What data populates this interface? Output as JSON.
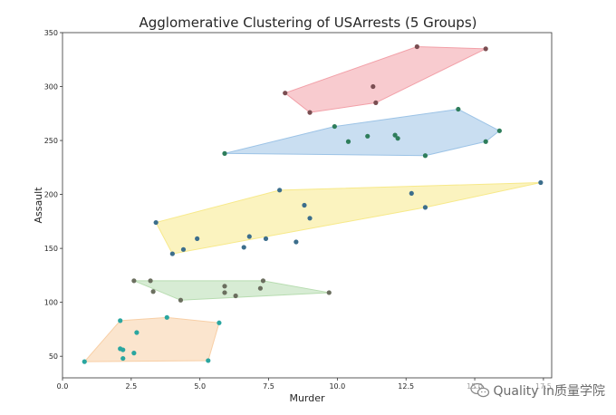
{
  "chart_data": {
    "type": "scatter",
    "title": "Agglomerative Clustering of USArrests (5 Groups)",
    "xlabel": "Murder",
    "ylabel": "Assault",
    "xlim": [
      0,
      17.8
    ],
    "ylim": [
      30,
      350
    ],
    "xticks": [
      "0.0",
      "2.5",
      "5.0",
      "7.5",
      "10.0",
      "12.5",
      "15.0",
      "17.5"
    ],
    "yticks": [
      "50",
      "100",
      "150",
      "200",
      "250",
      "300",
      "350"
    ],
    "grid": false,
    "clusters": [
      {
        "hull_color": "#f2a0a8",
        "point_color": "#7a4e52",
        "hull": [
          [
            8.1,
            294
          ],
          [
            9.0,
            276
          ],
          [
            11.4,
            285
          ],
          [
            15.4,
            335
          ],
          [
            12.9,
            337
          ]
        ],
        "points": [
          [
            8.1,
            294
          ],
          [
            9.0,
            276
          ],
          [
            11.4,
            285
          ],
          [
            11.3,
            300
          ],
          [
            12.9,
            337
          ],
          [
            15.4,
            335
          ]
        ]
      },
      {
        "hull_color": "#9cc3e6",
        "point_color": "#2e7d5b",
        "hull": [
          [
            5.9,
            238
          ],
          [
            13.2,
            236
          ],
          [
            15.4,
            249
          ],
          [
            15.9,
            259
          ],
          [
            14.4,
            279
          ],
          [
            9.9,
            263
          ]
        ],
        "points": [
          [
            5.9,
            238
          ],
          [
            9.9,
            263
          ],
          [
            10.4,
            249
          ],
          [
            11.1,
            254
          ],
          [
            12.1,
            255
          ],
          [
            12.2,
            252
          ],
          [
            13.2,
            236
          ],
          [
            14.4,
            279
          ],
          [
            15.4,
            249
          ],
          [
            15.9,
            259
          ]
        ]
      },
      {
        "hull_color": "#f7e98a",
        "point_color": "#3c6e8c",
        "hull": [
          [
            3.4,
            174
          ],
          [
            4.0,
            145
          ],
          [
            13.2,
            188
          ],
          [
            17.4,
            211
          ],
          [
            7.9,
            204
          ]
        ],
        "points": [
          [
            3.4,
            174
          ],
          [
            4.0,
            145
          ],
          [
            4.4,
            149
          ],
          [
            4.9,
            159
          ],
          [
            6.6,
            151
          ],
          [
            6.8,
            161
          ],
          [
            7.4,
            159
          ],
          [
            7.9,
            204
          ],
          [
            8.5,
            156
          ],
          [
            8.8,
            190
          ],
          [
            9.0,
            178
          ],
          [
            12.7,
            201
          ],
          [
            13.2,
            188
          ],
          [
            17.4,
            211
          ]
        ]
      },
      {
        "hull_color": "#b7dcb0",
        "point_color": "#6b6f5f",
        "hull": [
          [
            2.6,
            120
          ],
          [
            4.3,
            102
          ],
          [
            9.7,
            109
          ],
          [
            7.3,
            120
          ],
          [
            3.2,
            120
          ]
        ],
        "points": [
          [
            2.6,
            120
          ],
          [
            3.2,
            120
          ],
          [
            3.3,
            110
          ],
          [
            4.3,
            102
          ],
          [
            5.9,
            115
          ],
          [
            5.9,
            109
          ],
          [
            6.3,
            106
          ],
          [
            7.2,
            113
          ],
          [
            7.3,
            120
          ],
          [
            9.7,
            109
          ]
        ]
      },
      {
        "hull_color": "#f8cfa6",
        "point_color": "#2aa6a0",
        "hull": [
          [
            0.8,
            45
          ],
          [
            5.3,
            46
          ],
          [
            5.7,
            81
          ],
          [
            3.8,
            86
          ],
          [
            2.1,
            83
          ]
        ],
        "points": [
          [
            0.8,
            45
          ],
          [
            2.1,
            83
          ],
          [
            2.1,
            57
          ],
          [
            2.2,
            56
          ],
          [
            2.2,
            48
          ],
          [
            2.6,
            53
          ],
          [
            2.7,
            72
          ],
          [
            3.8,
            86
          ],
          [
            5.3,
            46
          ],
          [
            5.7,
            81
          ]
        ]
      }
    ]
  },
  "watermark": {
    "text": "Quality In质量学院",
    "icon": "wechat-icon"
  }
}
